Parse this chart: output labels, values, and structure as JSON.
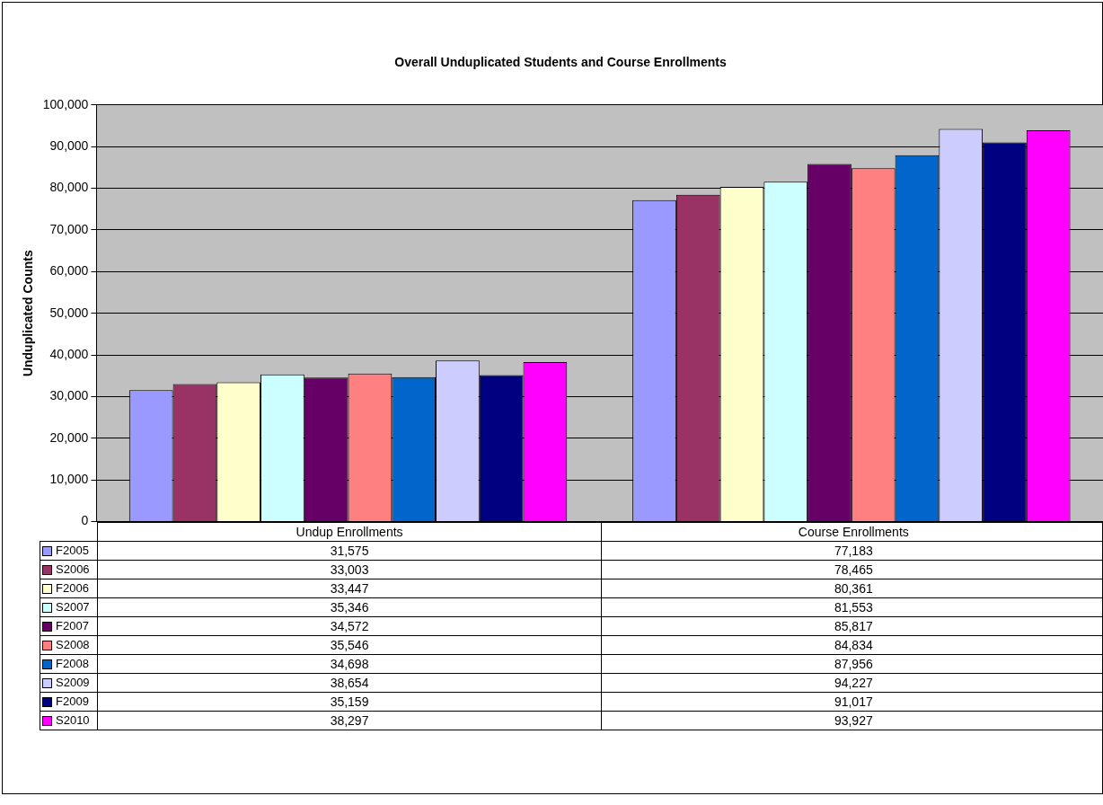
{
  "chart_data": {
    "type": "bar",
    "title": "Overall Unduplicated Students and Course Enrollments",
    "ylabel": "Unduplicated Counts",
    "categories": [
      "Undup Enrollments",
      "Course Enrollments"
    ],
    "series": [
      {
        "name": "F2005",
        "color": "#9999ff",
        "values": [
          31575,
          77183
        ],
        "value_labels": [
          "31,575",
          "77,183"
        ]
      },
      {
        "name": "S2006",
        "color": "#993366",
        "values": [
          33003,
          78465
        ],
        "value_labels": [
          "33,003",
          "78,465"
        ]
      },
      {
        "name": "F2006",
        "color": "#ffffcc",
        "values": [
          33447,
          80361
        ],
        "value_labels": [
          "33,447",
          "80,361"
        ]
      },
      {
        "name": "S2007",
        "color": "#ccffff",
        "values": [
          35346,
          81553
        ],
        "value_labels": [
          "35,346",
          "81,553"
        ]
      },
      {
        "name": "F2007",
        "color": "#660066",
        "values": [
          34572,
          85817
        ],
        "value_labels": [
          "34,572",
          "85,817"
        ]
      },
      {
        "name": "S2008",
        "color": "#ff8080",
        "values": [
          35546,
          84834
        ],
        "value_labels": [
          "35,546",
          "84,834"
        ]
      },
      {
        "name": "F2008",
        "color": "#0066cc",
        "values": [
          34698,
          87956
        ],
        "value_labels": [
          "34,698",
          "87,956"
        ]
      },
      {
        "name": "S2009",
        "color": "#ccccff",
        "values": [
          38654,
          94227
        ],
        "value_labels": [
          "38,654",
          "94,227"
        ]
      },
      {
        "name": "F2009",
        "color": "#000080",
        "values": [
          35159,
          91017
        ],
        "value_labels": [
          "35,159",
          "91,017"
        ]
      },
      {
        "name": "S2010",
        "color": "#ff00ff",
        "values": [
          38297,
          93927
        ],
        "value_labels": [
          "38,297",
          "93,927"
        ]
      }
    ],
    "ylim": [
      0,
      100000
    ],
    "yticks": [
      0,
      {
        "value": 10000,
        "label": "10,000"
      },
      {
        "value": 20000,
        "label": "20,000"
      },
      {
        "value": 30000,
        "label": "30,000"
      },
      {
        "value": 40000,
        "label": "40,000"
      },
      {
        "value": 50000,
        "label": "50,000"
      },
      {
        "value": 60000,
        "label": "60,000"
      },
      {
        "value": 70000,
        "label": "70,000"
      },
      {
        "value": 80000,
        "label": "80,000"
      },
      {
        "value": 90000,
        "label": "90,000"
      },
      {
        "value": 100000,
        "label": "100,000"
      }
    ],
    "grid": "y",
    "legend": "bottom"
  }
}
